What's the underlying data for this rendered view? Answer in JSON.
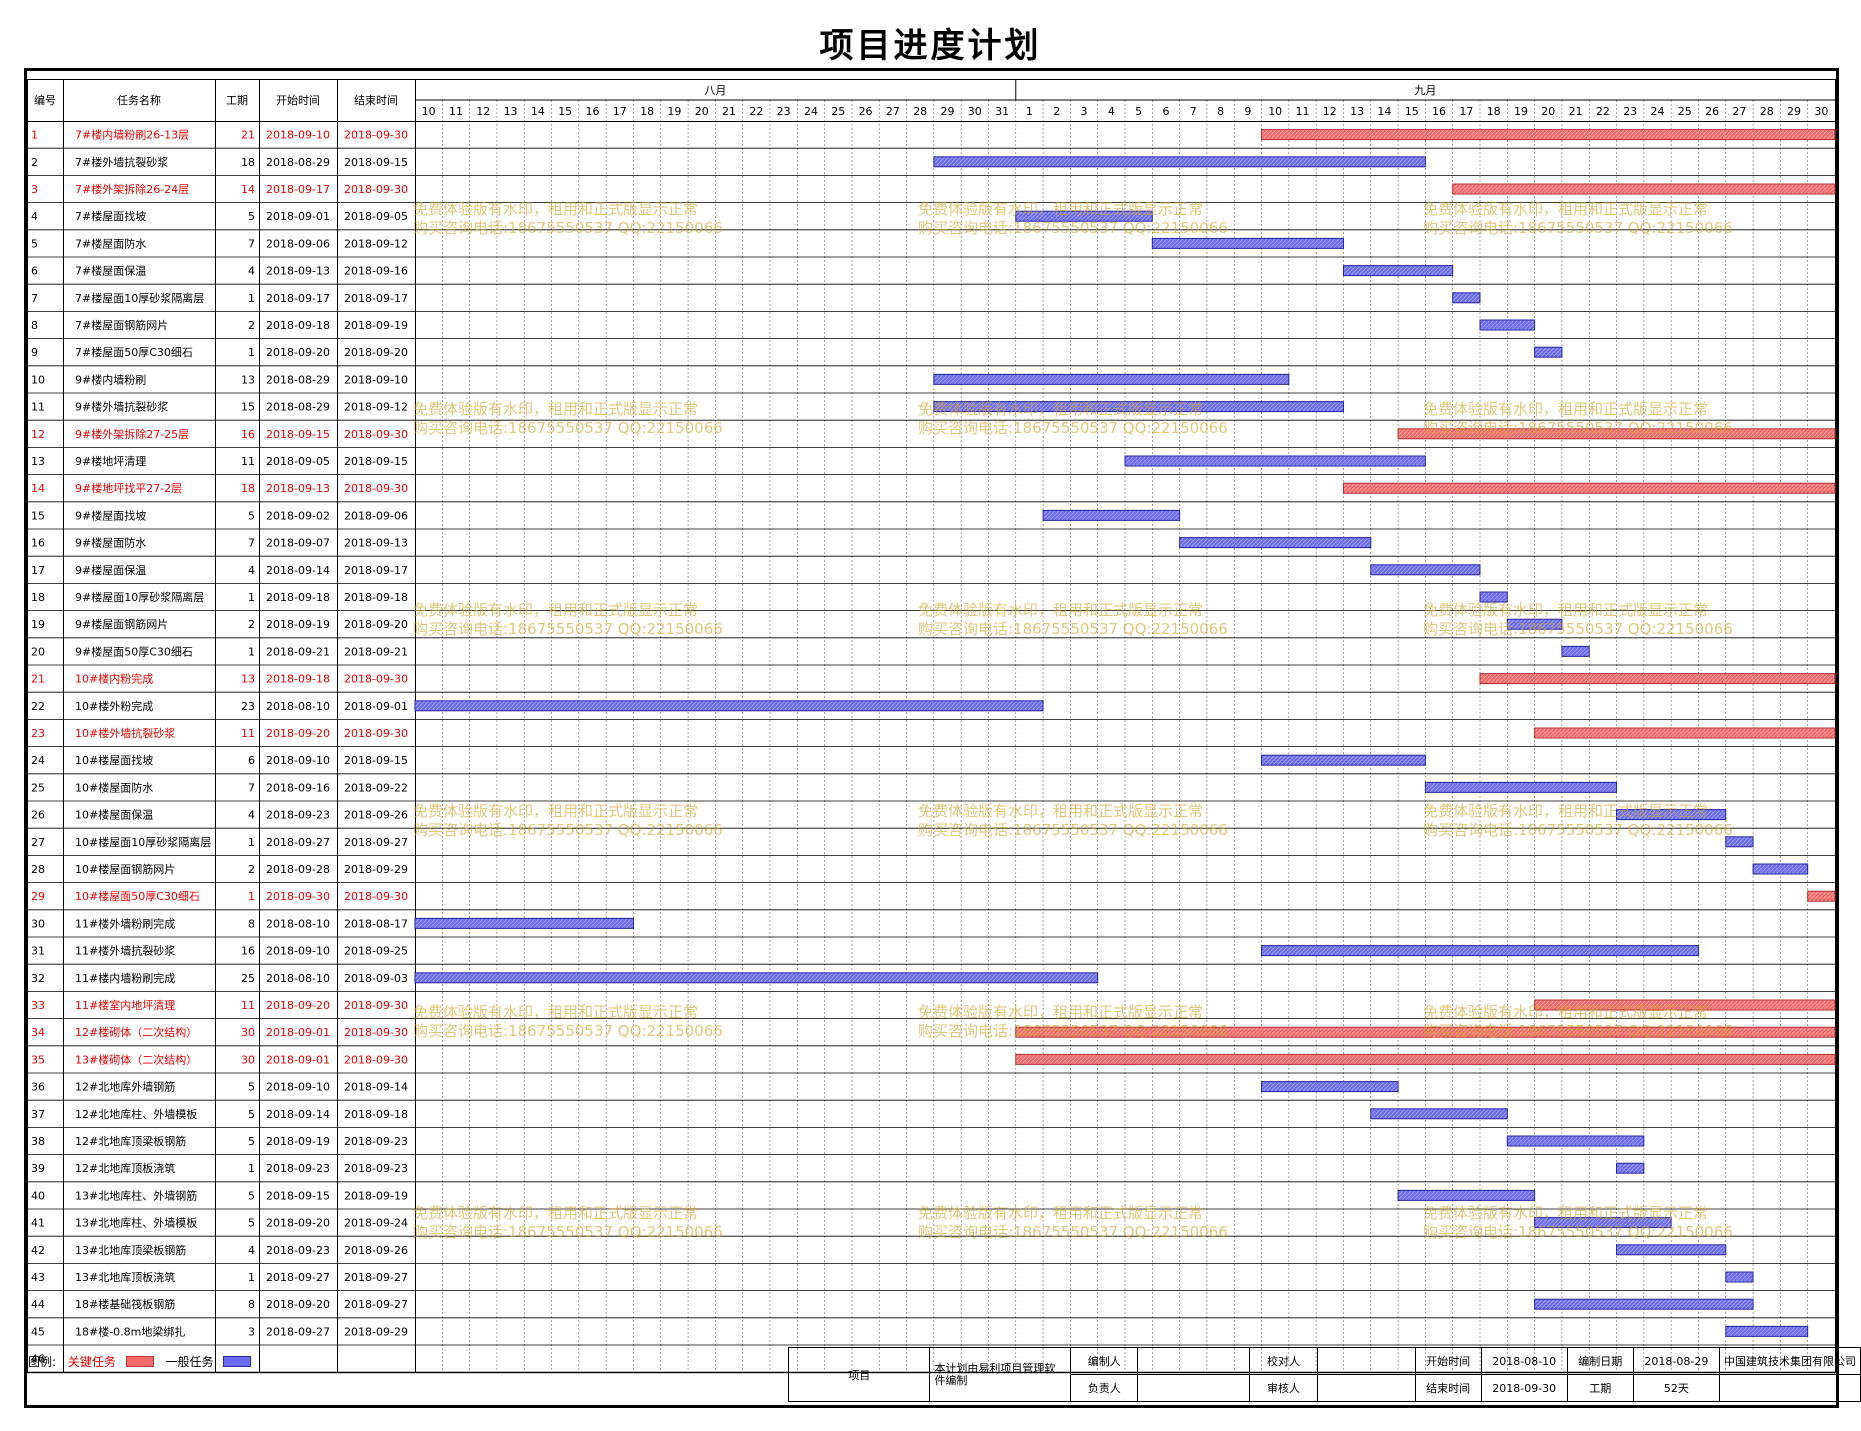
{
  "title": "项目进度计划",
  "headers": {
    "id": "编号",
    "name": "任务名称",
    "duration": "工期",
    "start": "开始时间",
    "end": "结束时间"
  },
  "months": [
    {
      "label": "八月",
      "start_day": 10,
      "end_day": 31
    },
    {
      "label": "九月",
      "start_day": 1,
      "end_day": 30
    }
  ],
  "day_labels": [
    "10",
    "11",
    "12",
    "13",
    "14",
    "15",
    "16",
    "17",
    "18",
    "19",
    "20",
    "21",
    "22",
    "23",
    "24",
    "25",
    "26",
    "27",
    "28",
    "29",
    "30",
    "31",
    "1",
    "2",
    "3",
    "4",
    "5",
    "6",
    "7",
    "8",
    "9",
    "10",
    "11",
    "12",
    "13",
    "14",
    "15",
    "16",
    "17",
    "18",
    "19",
    "20",
    "21",
    "22",
    "23",
    "24",
    "25",
    "26",
    "27",
    "28",
    "29",
    "30"
  ],
  "colors": {
    "critical_text": "#e60000",
    "critical_bar": "#f36a6a",
    "normal_bar": "#6b6bf2"
  },
  "chart_data": {
    "type": "gantt",
    "x_range": [
      "2018-08-10",
      "2018-09-30"
    ],
    "tasks": [
      {
        "id": "1",
        "name": "7#楼内墙粉刷26-13层",
        "duration": "21",
        "start": "2018-09-10",
        "end": "2018-09-30",
        "critical": true
      },
      {
        "id": "2",
        "name": "7#楼外墙抗裂砂浆",
        "duration": "18",
        "start": "2018-08-29",
        "end": "2018-09-15",
        "critical": false
      },
      {
        "id": "3",
        "name": "7#楼外架拆除26-24层",
        "duration": "14",
        "start": "2018-09-17",
        "end": "2018-09-30",
        "critical": true
      },
      {
        "id": "4",
        "name": "7#楼屋面找坡",
        "duration": "5",
        "start": "2018-09-01",
        "end": "2018-09-05",
        "critical": false
      },
      {
        "id": "5",
        "name": "7#楼屋面防水",
        "duration": "7",
        "start": "2018-09-06",
        "end": "2018-09-12",
        "critical": false
      },
      {
        "id": "6",
        "name": "7#楼屋面保温",
        "duration": "4",
        "start": "2018-09-13",
        "end": "2018-09-16",
        "critical": false
      },
      {
        "id": "7",
        "name": "7#楼屋面10厚砂浆隔离层",
        "duration": "1",
        "start": "2018-09-17",
        "end": "2018-09-17",
        "critical": false
      },
      {
        "id": "8",
        "name": "7#楼屋面钢筋网片",
        "duration": "2",
        "start": "2018-09-18",
        "end": "2018-09-19",
        "critical": false
      },
      {
        "id": "9",
        "name": "7#楼屋面50厚C30细石",
        "duration": "1",
        "start": "2018-09-20",
        "end": "2018-09-20",
        "critical": false
      },
      {
        "id": "10",
        "name": "9#楼内墙粉刷",
        "duration": "13",
        "start": "2018-08-29",
        "end": "2018-09-10",
        "critical": false
      },
      {
        "id": "11",
        "name": "9#楼外墙抗裂砂浆",
        "duration": "15",
        "start": "2018-08-29",
        "end": "2018-09-12",
        "critical": false
      },
      {
        "id": "12",
        "name": "9#楼外架拆除27-25层",
        "duration": "16",
        "start": "2018-09-15",
        "end": "2018-09-30",
        "critical": true
      },
      {
        "id": "13",
        "name": "9#楼地坪清理",
        "duration": "11",
        "start": "2018-09-05",
        "end": "2018-09-15",
        "critical": false
      },
      {
        "id": "14",
        "name": "9#楼地坪找平27-2层",
        "duration": "18",
        "start": "2018-09-13",
        "end": "2018-09-30",
        "critical": true
      },
      {
        "id": "15",
        "name": "9#楼屋面找坡",
        "duration": "5",
        "start": "2018-09-02",
        "end": "2018-09-06",
        "critical": false
      },
      {
        "id": "16",
        "name": "9#楼屋面防水",
        "duration": "7",
        "start": "2018-09-07",
        "end": "2018-09-13",
        "critical": false
      },
      {
        "id": "17",
        "name": "9#楼屋面保温",
        "duration": "4",
        "start": "2018-09-14",
        "end": "2018-09-17",
        "critical": false
      },
      {
        "id": "18",
        "name": "9#楼屋面10厚砂浆隔离层",
        "duration": "1",
        "start": "2018-09-18",
        "end": "2018-09-18",
        "critical": false
      },
      {
        "id": "19",
        "name": "9#楼屋面钢筋网片",
        "duration": "2",
        "start": "2018-09-19",
        "end": "2018-09-20",
        "critical": false
      },
      {
        "id": "20",
        "name": "9#楼屋面50厚C30细石",
        "duration": "1",
        "start": "2018-09-21",
        "end": "2018-09-21",
        "critical": false
      },
      {
        "id": "21",
        "name": "10#楼内粉完成",
        "duration": "13",
        "start": "2018-09-18",
        "end": "2018-09-30",
        "critical": true
      },
      {
        "id": "22",
        "name": "10#楼外粉完成",
        "duration": "23",
        "start": "2018-08-10",
        "end": "2018-09-01",
        "critical": false
      },
      {
        "id": "23",
        "name": "10#楼外墙抗裂砂浆",
        "duration": "11",
        "start": "2018-09-20",
        "end": "2018-09-30",
        "critical": true
      },
      {
        "id": "24",
        "name": "10#楼屋面找坡",
        "duration": "6",
        "start": "2018-09-10",
        "end": "2018-09-15",
        "critical": false
      },
      {
        "id": "25",
        "name": "10#楼屋面防水",
        "duration": "7",
        "start": "2018-09-16",
        "end": "2018-09-22",
        "critical": false
      },
      {
        "id": "26",
        "name": "10#楼屋面保温",
        "duration": "4",
        "start": "2018-09-23",
        "end": "2018-09-26",
        "critical": false
      },
      {
        "id": "27",
        "name": "10#楼屋面10厚砂浆隔离层",
        "duration": "1",
        "start": "2018-09-27",
        "end": "2018-09-27",
        "critical": false
      },
      {
        "id": "28",
        "name": "10#楼屋面钢筋网片",
        "duration": "2",
        "start": "2018-09-28",
        "end": "2018-09-29",
        "critical": false
      },
      {
        "id": "29",
        "name": "10#楼屋面50厚C30细石",
        "duration": "1",
        "start": "2018-09-30",
        "end": "2018-09-30",
        "critical": true
      },
      {
        "id": "30",
        "name": "11#楼外墙粉刷完成",
        "duration": "8",
        "start": "2018-08-10",
        "end": "2018-08-17",
        "critical": false
      },
      {
        "id": "31",
        "name": "11#楼外墙抗裂砂浆",
        "duration": "16",
        "start": "2018-09-10",
        "end": "2018-09-25",
        "critical": false
      },
      {
        "id": "32",
        "name": "11#楼内墙粉刷完成",
        "duration": "25",
        "start": "2018-08-10",
        "end": "2018-09-03",
        "critical": false
      },
      {
        "id": "33",
        "name": "11#楼室内地坪清理",
        "duration": "11",
        "start": "2018-09-20",
        "end": "2018-09-30",
        "critical": true
      },
      {
        "id": "34",
        "name": "12#楼砌体（二次结构）",
        "duration": "30",
        "start": "2018-09-01",
        "end": "2018-09-30",
        "critical": true
      },
      {
        "id": "35",
        "name": "13#楼砌体（二次结构）",
        "duration": "30",
        "start": "2018-09-01",
        "end": "2018-09-30",
        "critical": true
      },
      {
        "id": "36",
        "name": "12#北地库外墙钢筋",
        "duration": "5",
        "start": "2018-09-10",
        "end": "2018-09-14",
        "critical": false
      },
      {
        "id": "37",
        "name": "12#北地库柱、外墙模板",
        "duration": "5",
        "start": "2018-09-14",
        "end": "2018-09-18",
        "critical": false
      },
      {
        "id": "38",
        "name": "12#北地库顶梁板钢筋",
        "duration": "5",
        "start": "2018-09-19",
        "end": "2018-09-23",
        "critical": false
      },
      {
        "id": "39",
        "name": "12#北地库顶板浇筑",
        "duration": "1",
        "start": "2018-09-23",
        "end": "2018-09-23",
        "critical": false
      },
      {
        "id": "40",
        "name": "13#北地库柱、外墙钢筋",
        "duration": "5",
        "start": "2018-09-15",
        "end": "2018-09-19",
        "critical": false
      },
      {
        "id": "41",
        "name": "13#北地库柱、外墙模板",
        "duration": "5",
        "start": "2018-09-20",
        "end": "2018-09-24",
        "critical": false
      },
      {
        "id": "42",
        "name": "13#北地库顶梁板钢筋",
        "duration": "4",
        "start": "2018-09-23",
        "end": "2018-09-26",
        "critical": false
      },
      {
        "id": "43",
        "name": "13#北地库顶板浇筑",
        "duration": "1",
        "start": "2018-09-27",
        "end": "2018-09-27",
        "critical": false
      },
      {
        "id": "44",
        "name": "18#楼基础筏板钢筋",
        "duration": "8",
        "start": "2018-09-20",
        "end": "2018-09-27",
        "critical": false
      },
      {
        "id": "45",
        "name": "18#楼-0.8m地梁绑扎",
        "duration": "3",
        "start": "2018-09-27",
        "end": "2018-09-29",
        "critical": false
      },
      {
        "id": "46",
        "name": "",
        "duration": "",
        "start": "",
        "end": "",
        "critical": false
      }
    ]
  },
  "legend": {
    "label": "图例:",
    "critical": "关键任务",
    "normal": "一般任务"
  },
  "watermark": {
    "line1": "免费体验版有水印，租用和正式版显示正常",
    "line2": "购买咨询电话:18675550537 QQ:22150066"
  },
  "footer": {
    "project_label": "项目",
    "software_note": "本计划由易利项目管理软件编制",
    "compiler_label": "编制人",
    "compiler": "",
    "checker_label": "校对人",
    "checker": "",
    "responsible_label": "负责人",
    "responsible": "",
    "reviewer_label": "审核人",
    "reviewer": "",
    "start_label": "开始时间",
    "start_value": "2018-08-10",
    "end_label": "结束时间",
    "end_value": "2018-09-30",
    "date_label": "编制日期",
    "date_value": "2018-08-29",
    "duration_label": "工期",
    "duration_value": "52天",
    "company": "中国建筑技术集团有限公司"
  }
}
